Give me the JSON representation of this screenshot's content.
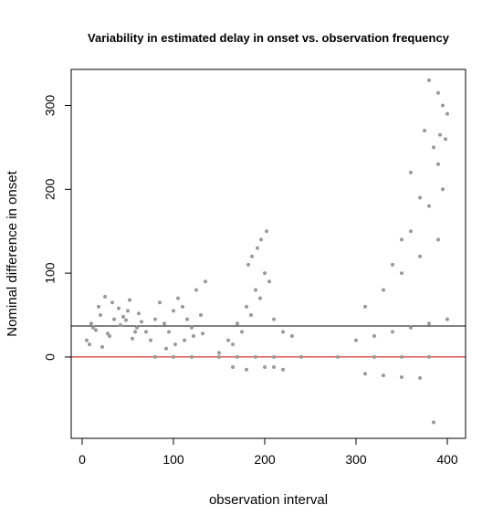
{
  "chart_data": {
    "type": "scatter",
    "title": "Variability in estimated delay in onset vs. observation frequency",
    "xlabel": "observation interval",
    "ylabel": "Nominal difference in onset",
    "xlim": [
      -12,
      420
    ],
    "ylim": [
      -97,
      343
    ],
    "xticks": [
      0,
      100,
      200,
      300,
      400
    ],
    "yticks": [
      0,
      100,
      200,
      300
    ],
    "point_color": "#999999",
    "grid": false,
    "legend": "none",
    "reference_lines": [
      {
        "y": 37,
        "color": "#000000"
      },
      {
        "y": 0,
        "color": "#cc0000"
      }
    ],
    "series": [
      {
        "x": [
          5,
          12,
          20,
          28,
          35,
          42,
          50,
          58,
          65,
          8,
          18,
          30,
          45,
          60,
          10,
          25,
          40,
          55,
          15,
          33,
          48,
          62,
          22,
          52,
          70,
          80,
          90,
          100,
          110,
          120,
          130,
          75,
          85,
          95,
          105,
          115,
          125,
          135,
          92,
          102,
          112,
          122,
          132,
          150,
          160,
          170,
          180,
          190,
          200,
          210,
          220,
          230,
          165,
          175,
          185,
          195,
          205,
          182,
          192,
          202,
          186,
          196,
          300,
          320,
          340,
          360,
          380,
          400,
          310,
          330,
          350,
          370,
          390,
          340,
          360,
          380,
          395,
          350,
          370,
          390,
          398,
          360,
          385,
          400,
          375,
          395,
          380,
          390,
          392,
          80,
          100,
          120,
          150,
          170,
          190,
          210,
          240,
          280,
          320,
          350,
          380,
          165,
          180,
          200,
          210,
          220,
          310,
          330,
          350,
          370,
          385
        ],
        "y": [
          20,
          35,
          50,
          28,
          45,
          38,
          55,
          30,
          42,
          15,
          60,
          25,
          48,
          35,
          40,
          72,
          58,
          22,
          32,
          65,
          44,
          52,
          12,
          68,
          30,
          45,
          40,
          55,
          60,
          35,
          50,
          20,
          65,
          30,
          70,
          45,
          80,
          90,
          10,
          15,
          20,
          25,
          28,
          5,
          20,
          40,
          60,
          80,
          100,
          45,
          30,
          25,
          15,
          30,
          50,
          70,
          90,
          110,
          130,
          150,
          120,
          140,
          20,
          25,
          30,
          35,
          40,
          45,
          60,
          80,
          100,
          120,
          140,
          110,
          150,
          180,
          200,
          140,
          190,
          230,
          260,
          220,
          250,
          290,
          270,
          300,
          330,
          315,
          265,
          0,
          0,
          0,
          0,
          0,
          0,
          0,
          0,
          0,
          0,
          0,
          0,
          -12,
          -15,
          -12,
          -12,
          -15,
          -20,
          -22,
          -24,
          -25,
          -78
        ]
      }
    ]
  }
}
